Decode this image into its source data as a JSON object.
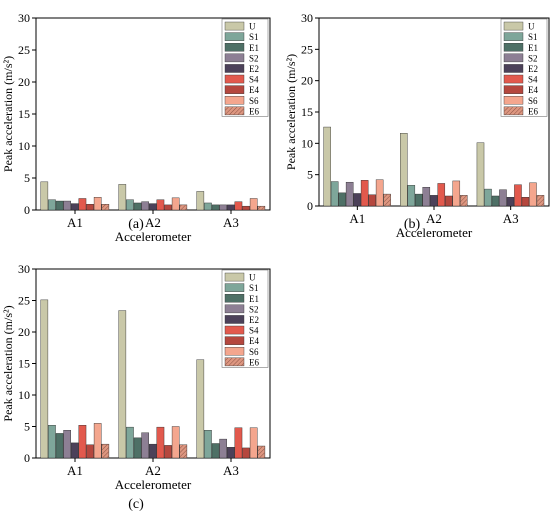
{
  "figure": {
    "panels": [
      {
        "caption": "(a)",
        "chart_data": {
          "type": "bar",
          "categories": [
            "A1",
            "A2",
            "A3"
          ],
          "xlabel": "Accelerometer",
          "ylabel": "Peak acceleration (m/s²)",
          "ylim": [
            0,
            30
          ],
          "yticks": [
            0,
            5,
            10,
            15,
            20,
            25,
            30
          ],
          "legend_position": "top-right",
          "series": [
            {
              "name": "U",
              "values": [
                4.4,
                4.0,
                2.9
              ]
            },
            {
              "name": "S1",
              "values": [
                1.6,
                1.6,
                1.1
              ]
            },
            {
              "name": "E1",
              "values": [
                1.4,
                1.1,
                0.8
              ]
            },
            {
              "name": "S2",
              "values": [
                1.4,
                1.3,
                0.8
              ]
            },
            {
              "name": "E2",
              "values": [
                1.0,
                1.0,
                0.8
              ]
            },
            {
              "name": "S4",
              "values": [
                1.8,
                1.6,
                1.3
              ]
            },
            {
              "name": "E4",
              "values": [
                0.9,
                0.8,
                0.6
              ]
            },
            {
              "name": "S6",
              "values": [
                2.0,
                1.9,
                1.8
              ]
            },
            {
              "name": "E6",
              "values": [
                0.9,
                0.8,
                0.6
              ]
            }
          ]
        }
      },
      {
        "caption": "(b)",
        "chart_data": {
          "type": "bar",
          "categories": [
            "A1",
            "A2",
            "A3"
          ],
          "xlabel": "Accelerometer",
          "ylabel": "Peak acceleration (m/s²)",
          "ylim": [
            0,
            30
          ],
          "yticks": [
            0,
            5,
            10,
            15,
            20,
            25,
            30
          ],
          "legend_position": "top-right",
          "series": [
            {
              "name": "U",
              "values": [
                12.6,
                11.6,
                10.1
              ]
            },
            {
              "name": "S1",
              "values": [
                3.9,
                3.3,
                2.7
              ]
            },
            {
              "name": "E1",
              "values": [
                2.1,
                1.9,
                1.6
              ]
            },
            {
              "name": "S2",
              "values": [
                3.8,
                3.0,
                2.6
              ]
            },
            {
              "name": "E2",
              "values": [
                2.0,
                1.7,
                1.4
              ]
            },
            {
              "name": "S4",
              "values": [
                4.1,
                3.6,
                3.4
              ]
            },
            {
              "name": "E4",
              "values": [
                1.8,
                1.6,
                1.4
              ]
            },
            {
              "name": "S6",
              "values": [
                4.2,
                4.0,
                3.7
              ]
            },
            {
              "name": "E6",
              "values": [
                1.9,
                1.7,
                1.7
              ]
            }
          ]
        }
      },
      {
        "caption": "(c)",
        "chart_data": {
          "type": "bar",
          "categories": [
            "A1",
            "A2",
            "A3"
          ],
          "xlabel": "Accelerometer",
          "ylabel": "Peak acceleration (m/s²)",
          "ylim": [
            0,
            30
          ],
          "yticks": [
            0,
            5,
            10,
            15,
            20,
            25,
            30
          ],
          "legend_position": "top-right",
          "series": [
            {
              "name": "U",
              "values": [
                25.1,
                23.4,
                15.6
              ]
            },
            {
              "name": "S1",
              "values": [
                5.2,
                4.9,
                4.4
              ]
            },
            {
              "name": "E1",
              "values": [
                3.9,
                3.2,
                2.3
              ]
            },
            {
              "name": "S2",
              "values": [
                4.4,
                4.0,
                3.0
              ]
            },
            {
              "name": "E2",
              "values": [
                2.4,
                2.2,
                1.7
              ]
            },
            {
              "name": "S4",
              "values": [
                5.2,
                4.9,
                4.8
              ]
            },
            {
              "name": "E4",
              "values": [
                2.1,
                2.0,
                1.6
              ]
            },
            {
              "name": "S6",
              "values": [
                5.5,
                5.0,
                4.8
              ]
            },
            {
              "name": "E6",
              "values": [
                2.2,
                2.1,
                1.9
              ]
            }
          ]
        }
      }
    ],
    "colors": {
      "U": "#c9c8a8",
      "S1": "#7ea69a",
      "E1": "#4e7066",
      "S2": "#8d7f94",
      "E2": "#4c4159",
      "S4": "#e2594d",
      "E4": "#b5473e",
      "S6": "#f4a68e",
      "E6": "#dd9680"
    },
    "hatched_series": [
      "E6"
    ]
  }
}
